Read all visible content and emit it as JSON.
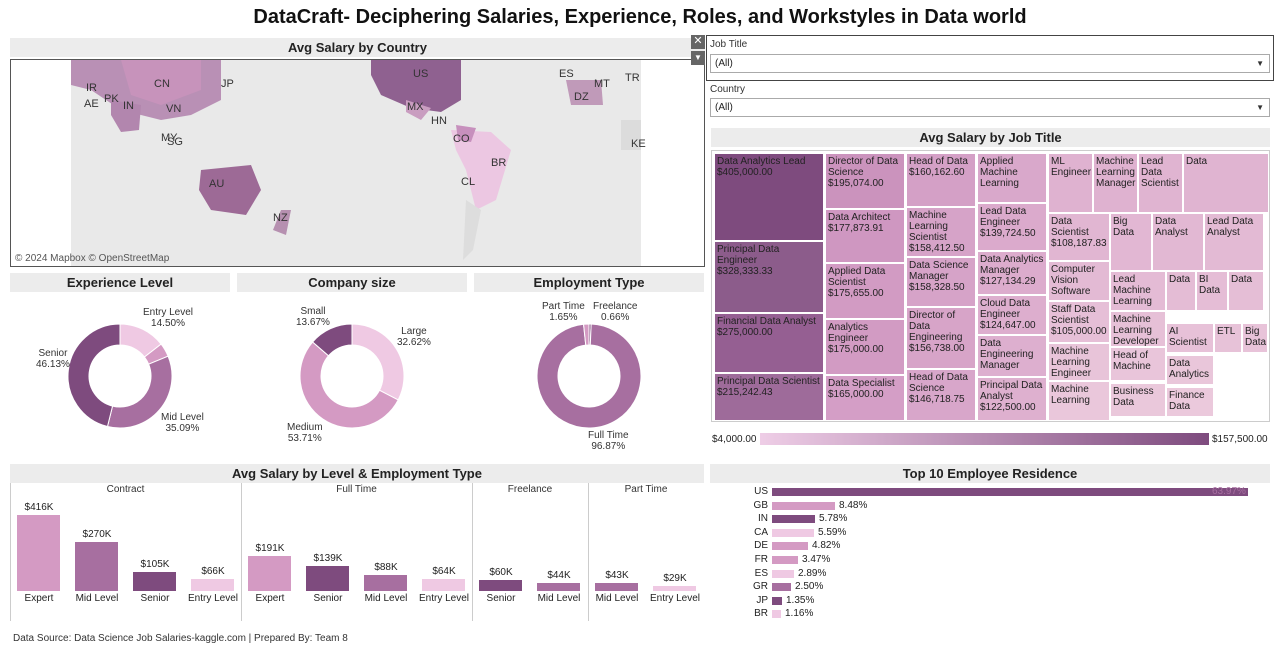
{
  "title": "DataCraft- Deciphering Salaries, Experience, Roles, and Workstyles in Data world",
  "map": {
    "heading": "Avg Salary by Country",
    "credit": "© 2024 Mapbox © OpenStreetMap",
    "labels": [
      "CN",
      "IR",
      "PK",
      "IN",
      "VN",
      "AE",
      "MY",
      "SG",
      "JP",
      "AU",
      "NZ",
      "US",
      "MX",
      "HN",
      "CO",
      "BR",
      "CL",
      "DZ",
      "KE",
      "ES",
      "MT",
      "TR"
    ]
  },
  "filters": {
    "job_title_label": "Job Title",
    "job_title_value": "(All)",
    "country_label": "Country",
    "country_value": "(All)"
  },
  "experience": {
    "heading": "Experience Level",
    "labels": [
      {
        "name": "Entry Level",
        "pct": "14.50%"
      },
      {
        "name": "Senior",
        "pct": "46.13%"
      },
      {
        "name": "Mid Level",
        "pct": "35.09%"
      }
    ]
  },
  "company_size": {
    "heading": "Company size",
    "labels": [
      {
        "name": "Small",
        "pct": "13.67%"
      },
      {
        "name": "Large",
        "pct": "32.62%"
      },
      {
        "name": "Medium",
        "pct": "53.71%"
      }
    ]
  },
  "employment": {
    "heading": "Employment Type",
    "labels": [
      {
        "name": "Part Time",
        "pct": "1.65%"
      },
      {
        "name": "Freelance",
        "pct": "0.66%"
      },
      {
        "name": "Full Time",
        "pct": "96.87%"
      }
    ]
  },
  "treemap": {
    "heading": "Avg Salary by Job Title",
    "legend_min": "$4,000.00",
    "legend_max": "$157,500.00",
    "cells": [
      {
        "title": "Data Analytics Lead",
        "value": "$405,000.00"
      },
      {
        "title": "Principal Data Engineer",
        "value": "$328,333.33"
      },
      {
        "title": "Financial Data Analyst",
        "value": "$275,000.00"
      },
      {
        "title": "Principal Data Scientist",
        "value": "$215,242.43"
      },
      {
        "title": "Director of Data Science",
        "value": "$195,074.00"
      },
      {
        "title": "Data Architect",
        "value": "$177,873.91"
      },
      {
        "title": "Applied Data Scientist",
        "value": "$175,655.00"
      },
      {
        "title": "Analytics Engineer",
        "value": "$175,000.00"
      },
      {
        "title": "Data Specialist",
        "value": "$165,000.00"
      },
      {
        "title": "Head of Data",
        "value": "$160,162.60"
      },
      {
        "title": "Machine Learning Scientist",
        "value": "$158,412.50"
      },
      {
        "title": "Data Science Manager",
        "value": "$158,328.50"
      },
      {
        "title": "Director of Data Engineering",
        "value": "$156,738.00"
      },
      {
        "title": "Head of Data Science",
        "value": "$146,718.75"
      },
      {
        "title": "Applied Machine Learning",
        "value": ""
      },
      {
        "title": "Lead Data Engineer",
        "value": "$139,724.50"
      },
      {
        "title": "Data Analytics Manager",
        "value": "$127,134.29"
      },
      {
        "title": "Cloud Data Engineer",
        "value": "$124,647.00"
      },
      {
        "title": "Data Engineering Manager",
        "value": ""
      },
      {
        "title": "Principal Data Analyst",
        "value": "$122,500.00"
      },
      {
        "title": "ML Engineer",
        "value": ""
      },
      {
        "title": "Machine Learning Manager",
        "value": ""
      },
      {
        "title": "Lead Data Scientist",
        "value": ""
      },
      {
        "title": "Data",
        "value": ""
      },
      {
        "title": "Data Scientist",
        "value": "$108,187.83"
      },
      {
        "title": "Big Data",
        "value": ""
      },
      {
        "title": "Data Analyst",
        "value": ""
      },
      {
        "title": "Lead Data Analyst",
        "value": ""
      },
      {
        "title": "Computer Vision Software",
        "value": ""
      },
      {
        "title": "Lead Machine Learning",
        "value": ""
      },
      {
        "title": "Data",
        "value": ""
      },
      {
        "title": "BI Data",
        "value": ""
      },
      {
        "title": "Data",
        "value": ""
      },
      {
        "title": "Staff Data Scientist",
        "value": "$105,000.00"
      },
      {
        "title": "Machine Learning Developer",
        "value": ""
      },
      {
        "title": "AI Scientist",
        "value": ""
      },
      {
        "title": "ETL",
        "value": ""
      },
      {
        "title": "Big Data",
        "value": ""
      },
      {
        "title": "Machine Learning Engineer",
        "value": ""
      },
      {
        "title": "Head of Machine",
        "value": ""
      },
      {
        "title": "Data Analytics",
        "value": ""
      },
      {
        "title": "Machine Learning",
        "value": ""
      },
      {
        "title": "Business Data",
        "value": ""
      },
      {
        "title": "Finance Data",
        "value": ""
      }
    ]
  },
  "level_employment": {
    "heading": "Avg Salary by Level & Employment Type",
    "groups": [
      {
        "name": "Contract",
        "bars": [
          {
            "cat": "Expert",
            "label": "$416K",
            "value": 416
          },
          {
            "cat": "Mid Level",
            "label": "$270K",
            "value": 270
          },
          {
            "cat": "Senior",
            "label": "$105K",
            "value": 105
          },
          {
            "cat": "Entry Level",
            "label": "$66K",
            "value": 66
          }
        ]
      },
      {
        "name": "Full Time",
        "bars": [
          {
            "cat": "Expert",
            "label": "$191K",
            "value": 191
          },
          {
            "cat": "Senior",
            "label": "$139K",
            "value": 139
          },
          {
            "cat": "Mid Level",
            "label": "$88K",
            "value": 88
          },
          {
            "cat": "Entry Level",
            "label": "$64K",
            "value": 64
          }
        ]
      },
      {
        "name": "Freelance",
        "bars": [
          {
            "cat": "Senior",
            "label": "$60K",
            "value": 60
          },
          {
            "cat": "Mid Level",
            "label": "$44K",
            "value": 44
          }
        ]
      },
      {
        "name": "Part Time",
        "bars": [
          {
            "cat": "Mid Level",
            "label": "$43K",
            "value": 43
          },
          {
            "cat": "Entry Level",
            "label": "$29K",
            "value": 29
          }
        ]
      }
    ]
  },
  "residence": {
    "heading": "Top 10 Employee Residence",
    "rows": [
      {
        "country": "US",
        "pct": 63.97,
        "label": "63.97%"
      },
      {
        "country": "GB",
        "pct": 8.48,
        "label": "8.48%"
      },
      {
        "country": "IN",
        "pct": 5.78,
        "label": "5.78%"
      },
      {
        "country": "CA",
        "pct": 5.59,
        "label": "5.59%"
      },
      {
        "country": "DE",
        "pct": 4.82,
        "label": "4.82%"
      },
      {
        "country": "FR",
        "pct": 3.47,
        "label": "3.47%"
      },
      {
        "country": "ES",
        "pct": 2.89,
        "label": "2.89%"
      },
      {
        "country": "GR",
        "pct": 2.5,
        "label": "2.50%"
      },
      {
        "country": "JP",
        "pct": 1.35,
        "label": "1.35%"
      },
      {
        "country": "BR",
        "pct": 1.16,
        "label": "1.16%"
      }
    ]
  },
  "footer": "Data Source: Data Science Job Salaries-kaggle.com | Prepared By: Team 8",
  "colors": {
    "dark": "#7e4b7e",
    "mid": "#a76fa0",
    "light": "#d49ac3",
    "pale": "#efc9e3",
    "panel_bg": "#ececec"
  }
}
